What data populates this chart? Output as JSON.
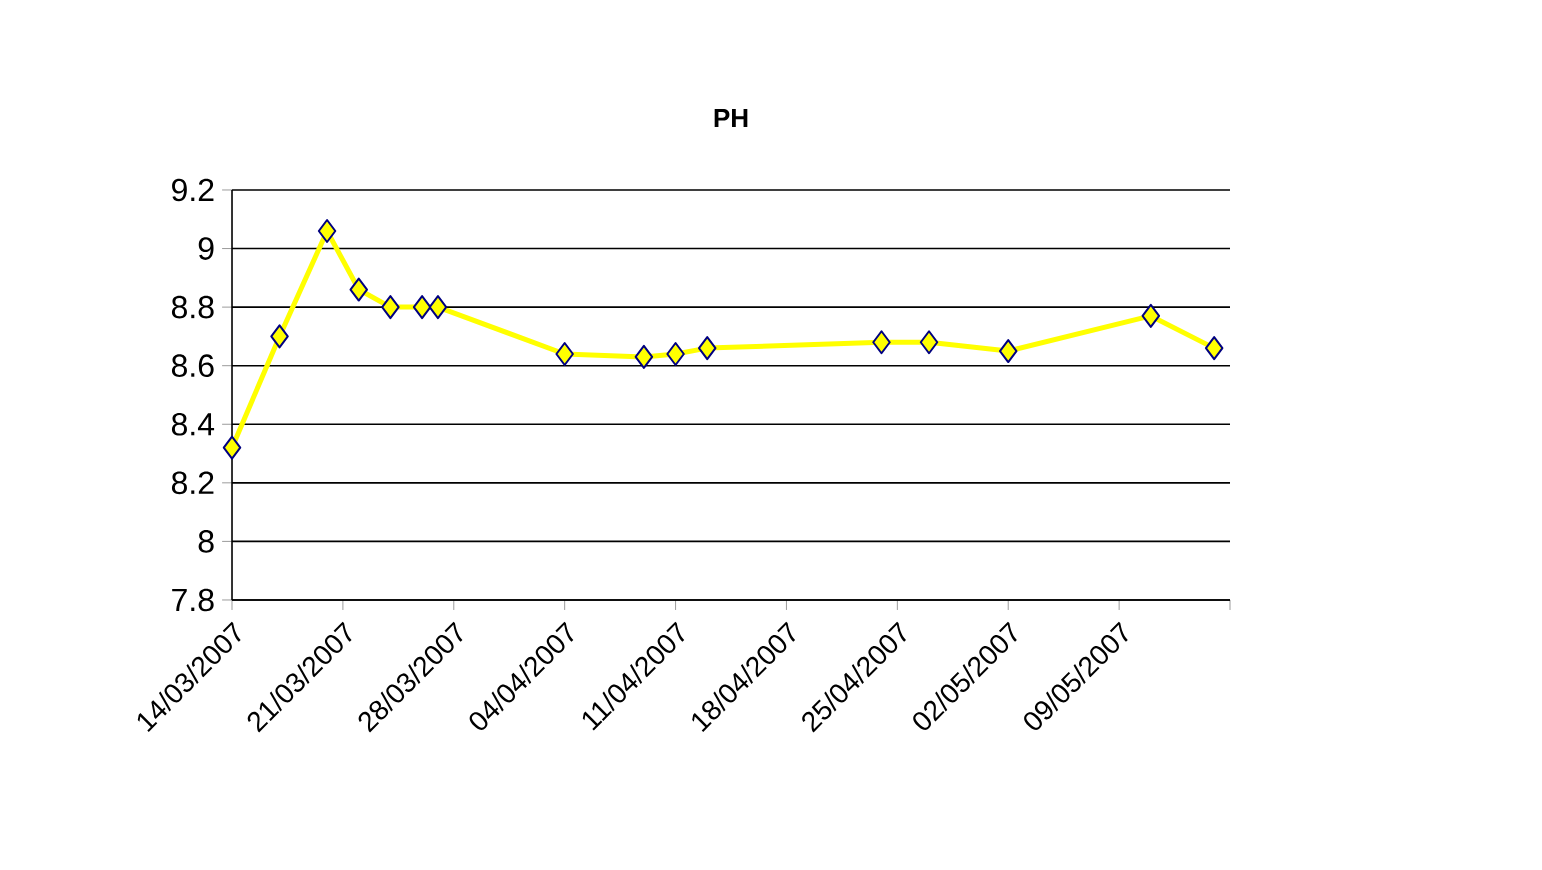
{
  "chart_data": {
    "type": "line",
    "title": "PH",
    "x": [
      "2007-03-14",
      "2007-03-17",
      "2007-03-20",
      "2007-03-22",
      "2007-03-24",
      "2007-03-26",
      "2007-03-27",
      "2007-04-04",
      "2007-04-09",
      "2007-04-11",
      "2007-04-13",
      "2007-04-24",
      "2007-04-27",
      "2007-05-02",
      "2007-05-11",
      "2007-05-15"
    ],
    "series": [
      {
        "color": "#ffff00",
        "values": [
          8.32,
          8.7,
          9.06,
          8.86,
          8.8,
          8.8,
          8.8,
          8.64,
          8.63,
          8.64,
          8.66,
          8.68,
          8.68,
          8.65,
          8.77,
          8.66
        ]
      }
    ],
    "xlim": [
      "2007-03-14",
      "2007-05-16"
    ],
    "xticks": [
      {
        "value": "2007-03-14",
        "label": "14/03/2007"
      },
      {
        "value": "2007-03-21",
        "label": "21/03/2007"
      },
      {
        "value": "2007-03-28",
        "label": "28/03/2007"
      },
      {
        "value": "2007-04-04",
        "label": "04/04/2007"
      },
      {
        "value": "2007-04-11",
        "label": "11/04/2007"
      },
      {
        "value": "2007-04-18",
        "label": "18/04/2007"
      },
      {
        "value": "2007-04-25",
        "label": "25/04/2007"
      },
      {
        "value": "2007-05-02",
        "label": "02/05/2007"
      },
      {
        "value": "2007-05-09",
        "label": "09/05/2007"
      },
      {
        "value": "2007-05-16",
        "label": null
      }
    ],
    "ylim": [
      7.8,
      9.2
    ],
    "yticks": [
      7.8,
      8,
      8.2,
      8.4,
      8.6,
      8.8,
      9,
      9.2
    ],
    "grid": "y",
    "marker": "diamond",
    "line_style": "solid"
  }
}
